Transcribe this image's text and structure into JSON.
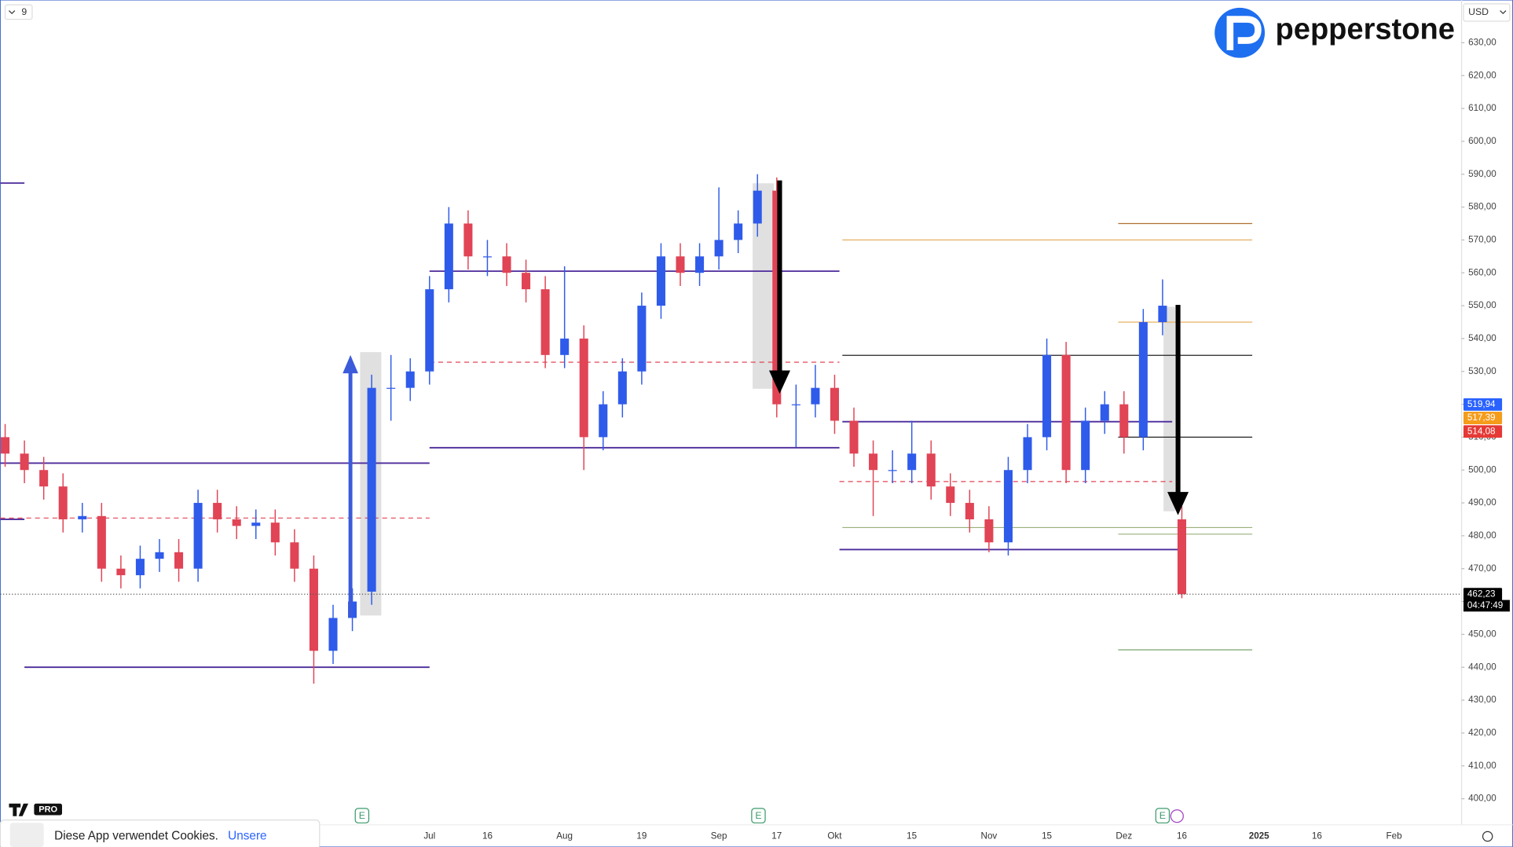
{
  "ui": {
    "interval": "9",
    "currency": "USD",
    "brand": "pepperstone",
    "logo_badge": "PRO",
    "cookie_text": "Diese App verwendet Cookies.",
    "cookie_link": "Unsere",
    "earnings": "E"
  },
  "chart_data": {
    "type": "candlestick",
    "up_color": "#2f5bea",
    "down_color": "#e04455",
    "categories": [
      null,
      null,
      null,
      null,
      null,
      null,
      null,
      null,
      null,
      null,
      null,
      null,
      null,
      null,
      null,
      null,
      null,
      null,
      null,
      null,
      null,
      null,
      "Jul",
      null,
      null,
      "16",
      null,
      null,
      null,
      "Aug",
      null,
      null,
      null,
      "19",
      null,
      null,
      null,
      "Sep",
      null,
      null,
      "17",
      null,
      null,
      "Okt",
      null,
      null,
      null,
      "15",
      null,
      null,
      null,
      "Nov",
      null,
      null,
      "15",
      null,
      null,
      null,
      "Dez",
      null,
      null,
      "16",
      null,
      null,
      null,
      "2025",
      null,
      null,
      "16",
      null,
      null,
      null,
      "Feb",
      null,
      null,
      null
    ],
    "open": [
      510,
      505,
      500,
      495,
      485,
      486,
      470,
      468,
      473,
      475,
      470,
      490,
      485,
      483,
      484,
      478,
      470,
      445,
      455,
      463,
      525,
      525,
      530,
      555,
      575,
      565,
      565,
      560,
      555,
      535,
      540,
      510,
      520,
      530,
      550,
      565,
      560,
      565,
      570,
      575,
      585,
      520,
      520,
      525,
      515,
      505,
      500,
      500,
      505,
      495,
      490,
      485,
      478,
      500,
      510,
      535,
      500,
      515,
      520,
      510,
      545,
      485,
      null,
      null,
      null,
      null,
      null,
      null,
      null,
      null,
      null,
      null,
      null,
      null,
      null,
      null
    ],
    "high": [
      514,
      509,
      504,
      499,
      490,
      490,
      474,
      477,
      479,
      479,
      494,
      494,
      489,
      488,
      488,
      482,
      474,
      459,
      464,
      529,
      535,
      534,
      559,
      580,
      579,
      570,
      569,
      564,
      559,
      562,
      544,
      524,
      534,
      554,
      569,
      569,
      569,
      586,
      579,
      590,
      589,
      526,
      532,
      529,
      519,
      509,
      506,
      515,
      509,
      499,
      494,
      489,
      504,
      514,
      540,
      539,
      519,
      524,
      524,
      549,
      558,
      489,
      null,
      null,
      null,
      null,
      null,
      null,
      null,
      null,
      null,
      null,
      null,
      null,
      null,
      null
    ],
    "low": [
      501,
      496,
      491,
      481,
      481,
      466,
      464,
      464,
      469,
      466,
      466,
      481,
      479,
      479,
      474,
      466,
      435,
      441,
      451,
      459,
      515,
      521,
      526,
      551,
      561,
      559,
      556,
      551,
      531,
      531,
      500,
      506,
      516,
      526,
      546,
      556,
      556,
      561,
      566,
      571,
      516,
      507,
      516,
      511,
      501,
      486,
      496,
      496,
      491,
      486,
      481,
      475,
      474,
      496,
      506,
      496,
      496,
      511,
      505,
      506,
      541,
      461,
      null,
      null,
      null,
      null,
      null,
      null,
      null,
      null,
      null,
      null,
      null,
      null,
      null,
      null
    ],
    "close": [
      505,
      500,
      495,
      485,
      486,
      470,
      468,
      473,
      475,
      470,
      490,
      485,
      483,
      484,
      478,
      470,
      445,
      455,
      460,
      525,
      525,
      530,
      555,
      575,
      565,
      565,
      560,
      555,
      535,
      540,
      510,
      520,
      530,
      550,
      565,
      560,
      565,
      570,
      575,
      585,
      520,
      520,
      525,
      515,
      505,
      500,
      500,
      505,
      495,
      490,
      485,
      478,
      500,
      510,
      535,
      500,
      515,
      520,
      510,
      545,
      550,
      462.23,
      null,
      null,
      null,
      null,
      null,
      null,
      null,
      null,
      null,
      null,
      null,
      null,
      null,
      null
    ],
    "ylim": [
      395,
      643
    ],
    "yticks": [
      {
        "value": 400,
        "label": "400,00"
      },
      {
        "value": 410,
        "label": "410,00"
      },
      {
        "value": 420,
        "label": "420,00"
      },
      {
        "value": 430,
        "label": "430,00"
      },
      {
        "value": 440,
        "label": "440,00"
      },
      {
        "value": 450,
        "label": "450,00"
      },
      {
        "value": 460,
        "label": "460,00"
      },
      {
        "value": 470,
        "label": "470,00"
      },
      {
        "value": 480,
        "label": "480,00"
      },
      {
        "value": 490,
        "label": "490,00"
      },
      {
        "value": 500,
        "label": "500,00"
      },
      {
        "value": 510,
        "label": "510,00"
      },
      {
        "value": 520,
        "label": "520,00"
      },
      {
        "value": 530,
        "label": "530,00"
      },
      {
        "value": 540,
        "label": "540,00"
      },
      {
        "value": 550,
        "label": "550,00"
      },
      {
        "value": 560,
        "label": "560,00"
      },
      {
        "value": 570,
        "label": "570,00"
      },
      {
        "value": 580,
        "label": "580,00"
      },
      {
        "value": 590,
        "label": "590,00"
      },
      {
        "value": 600,
        "label": "600,00"
      },
      {
        "value": 610,
        "label": "610,00"
      },
      {
        "value": 620,
        "label": "620,00"
      },
      {
        "value": 630,
        "label": "630,00"
      }
    ],
    "levels": [
      {
        "value": 560.5,
        "color": "#4b2a9a"
      },
      {
        "value": 506.8,
        "color": "#4b2a9a"
      },
      {
        "value": 502.1,
        "color": "#4b2a9a"
      },
      {
        "value": 440,
        "color": "#4b2a9a"
      },
      {
        "value": 514.7,
        "color": "#4b2a9a"
      },
      {
        "value": 475.8,
        "color": "#4b2a9a"
      },
      {
        "value": 532.8,
        "color": "#e04455",
        "dash": true
      },
      {
        "value": 485.4,
        "color": "#e04455",
        "dash": true
      },
      {
        "value": 496.5,
        "color": "#e04455",
        "dash": true
      },
      {
        "value": 534.9,
        "color": "#222222"
      },
      {
        "value": 510,
        "color": "#222222"
      },
      {
        "value": 570,
        "color": "#e6b060"
      },
      {
        "value": 575,
        "color": "#b07030"
      },
      {
        "value": 545,
        "color": "#e6b060"
      },
      {
        "value": 482.5,
        "color": "#9ab07a"
      },
      {
        "value": 480.5,
        "color": "#9ab07a"
      },
      {
        "value": 445.3,
        "color": "#6a9a5a"
      },
      {
        "value": 587.3,
        "color": "#4b2a9a"
      },
      {
        "value": 485,
        "color": "#4b2a9a"
      }
    ],
    "price_labels": [
      {
        "value": 519.94,
        "label": "519,94",
        "color": "#2962ff"
      },
      {
        "value": 517.39,
        "label": "517,39",
        "color": "#f59c1a"
      },
      {
        "value": 514.08,
        "label": "514,08",
        "color": "#e53935"
      },
      {
        "value": 462.23,
        "label": "462,23",
        "color": "#000000"
      }
    ],
    "countdown": "04:47:49"
  }
}
